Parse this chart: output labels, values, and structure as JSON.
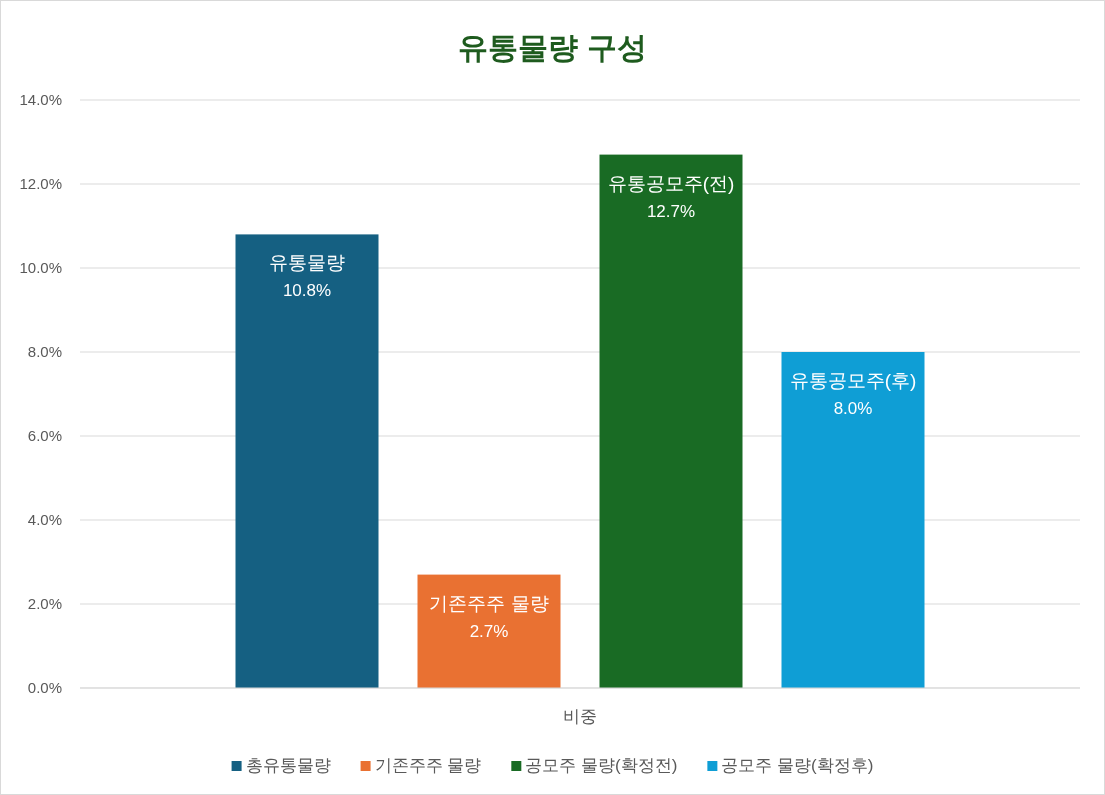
{
  "chart_data": {
    "type": "bar",
    "title": "유통물량 구성",
    "categories": [
      "비중"
    ],
    "series": [
      {
        "name": "총유통물량",
        "color": "#156082",
        "values": [
          10.8
        ],
        "value_labels": [
          "유통물량\n10.8%"
        ]
      },
      {
        "name": "기존주주 물량",
        "color": "#e97132",
        "values": [
          2.7
        ],
        "value_labels": [
          "기존주주 물량\n2.7%"
        ]
      },
      {
        "name": "공모주 물량(확정전)",
        "color": "#196b24",
        "values": [
          12.7
        ],
        "value_labels": [
          "유통공모주(전)\n12.7%"
        ]
      },
      {
        "name": "공모주 물량(확정후)",
        "color": "#0f9ed5",
        "values": [
          8.0
        ],
        "value_labels": [
          "유통공모주(후)\n8.0%"
        ]
      }
    ],
    "ylim": [
      0,
      14
    ],
    "yticks": [
      {
        "value": 0,
        "label": "0.0%"
      },
      {
        "value": 2,
        "label": "2.0%"
      },
      {
        "value": 4,
        "label": "4.0%"
      },
      {
        "value": 6,
        "label": "6.0%"
      },
      {
        "value": 8,
        "label": "8.0%"
      },
      {
        "value": 10,
        "label": "10.0%"
      },
      {
        "value": 12,
        "label": "12.0%"
      },
      {
        "value": 14,
        "label": "14.0%"
      }
    ],
    "grid": "y",
    "legend": "bottom"
  }
}
